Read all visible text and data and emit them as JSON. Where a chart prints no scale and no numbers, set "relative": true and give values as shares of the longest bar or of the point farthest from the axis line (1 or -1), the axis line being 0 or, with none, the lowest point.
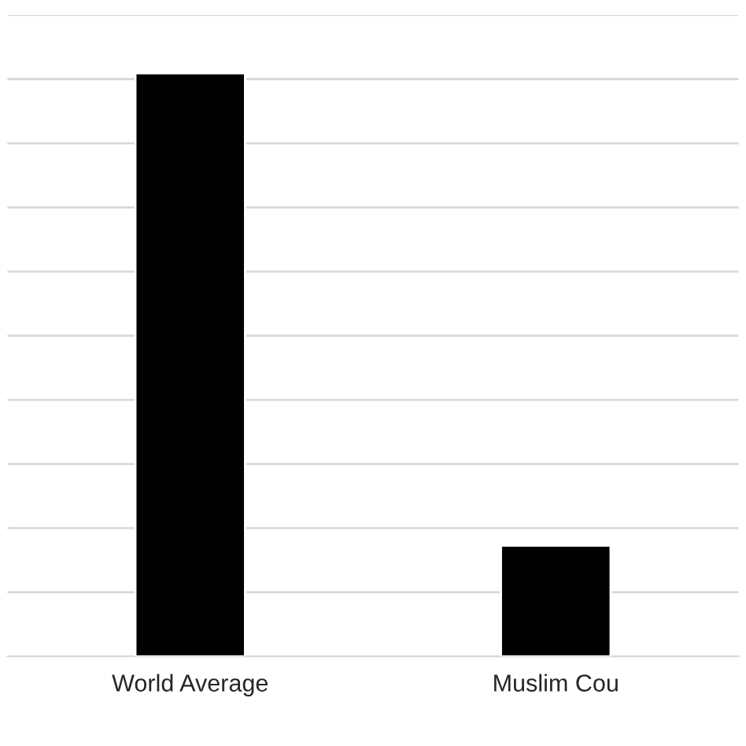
{
  "chart_data": {
    "type": "bar",
    "relative": true,
    "categories": [
      "World Average",
      "Muslim Cou"
    ],
    "values": [
      1,
      0.19
    ],
    "color": "#000000",
    "grid": "y",
    "tick_labels": "x"
  }
}
